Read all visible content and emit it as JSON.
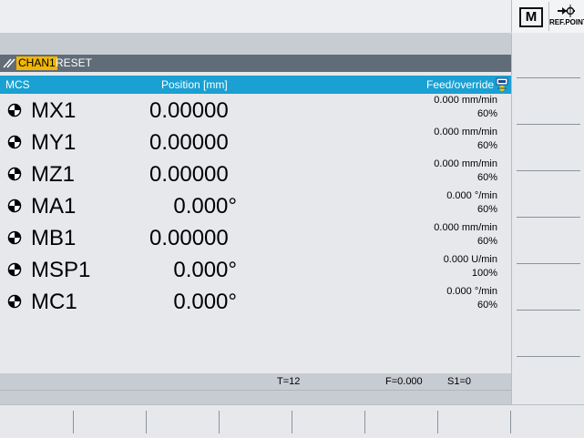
{
  "header": {
    "m_key_label": "M",
    "ref_point_label": "REF.POINT"
  },
  "channel_bar": {
    "channel": "CHAN1",
    "status": "RESET"
  },
  "table": {
    "col_mcs": "MCS",
    "col_position": "Position [mm]",
    "col_feed": "Feed/override",
    "rows": [
      {
        "axis": "MX1",
        "position": "0.00000",
        "feed": "0.000 mm/min",
        "override": "60%"
      },
      {
        "axis": "MY1",
        "position": "0.00000",
        "feed": "0.000 mm/min",
        "override": "60%"
      },
      {
        "axis": "MZ1",
        "position": "0.00000",
        "feed": "0.000 mm/min",
        "override": "60%"
      },
      {
        "axis": "MA1",
        "position": "0.000°",
        "feed": "0.000 °/min",
        "override": "60%"
      },
      {
        "axis": "MB1",
        "position": "0.00000",
        "feed": "0.000 mm/min",
        "override": "60%"
      },
      {
        "axis": "MSP1",
        "position": "0.000°",
        "feed": "0.000 U/min",
        "override": "100%"
      },
      {
        "axis": "MC1",
        "position": "0.000°",
        "feed": "0.000 °/min",
        "override": "60%"
      }
    ]
  },
  "status": {
    "tool": "T=12",
    "feed": "F=0.000",
    "spindle": "S1=0"
  },
  "colors": {
    "channel_highlight": "#f2b600",
    "table_header": "#1aa0d2",
    "channel_bar": "#606c78"
  }
}
